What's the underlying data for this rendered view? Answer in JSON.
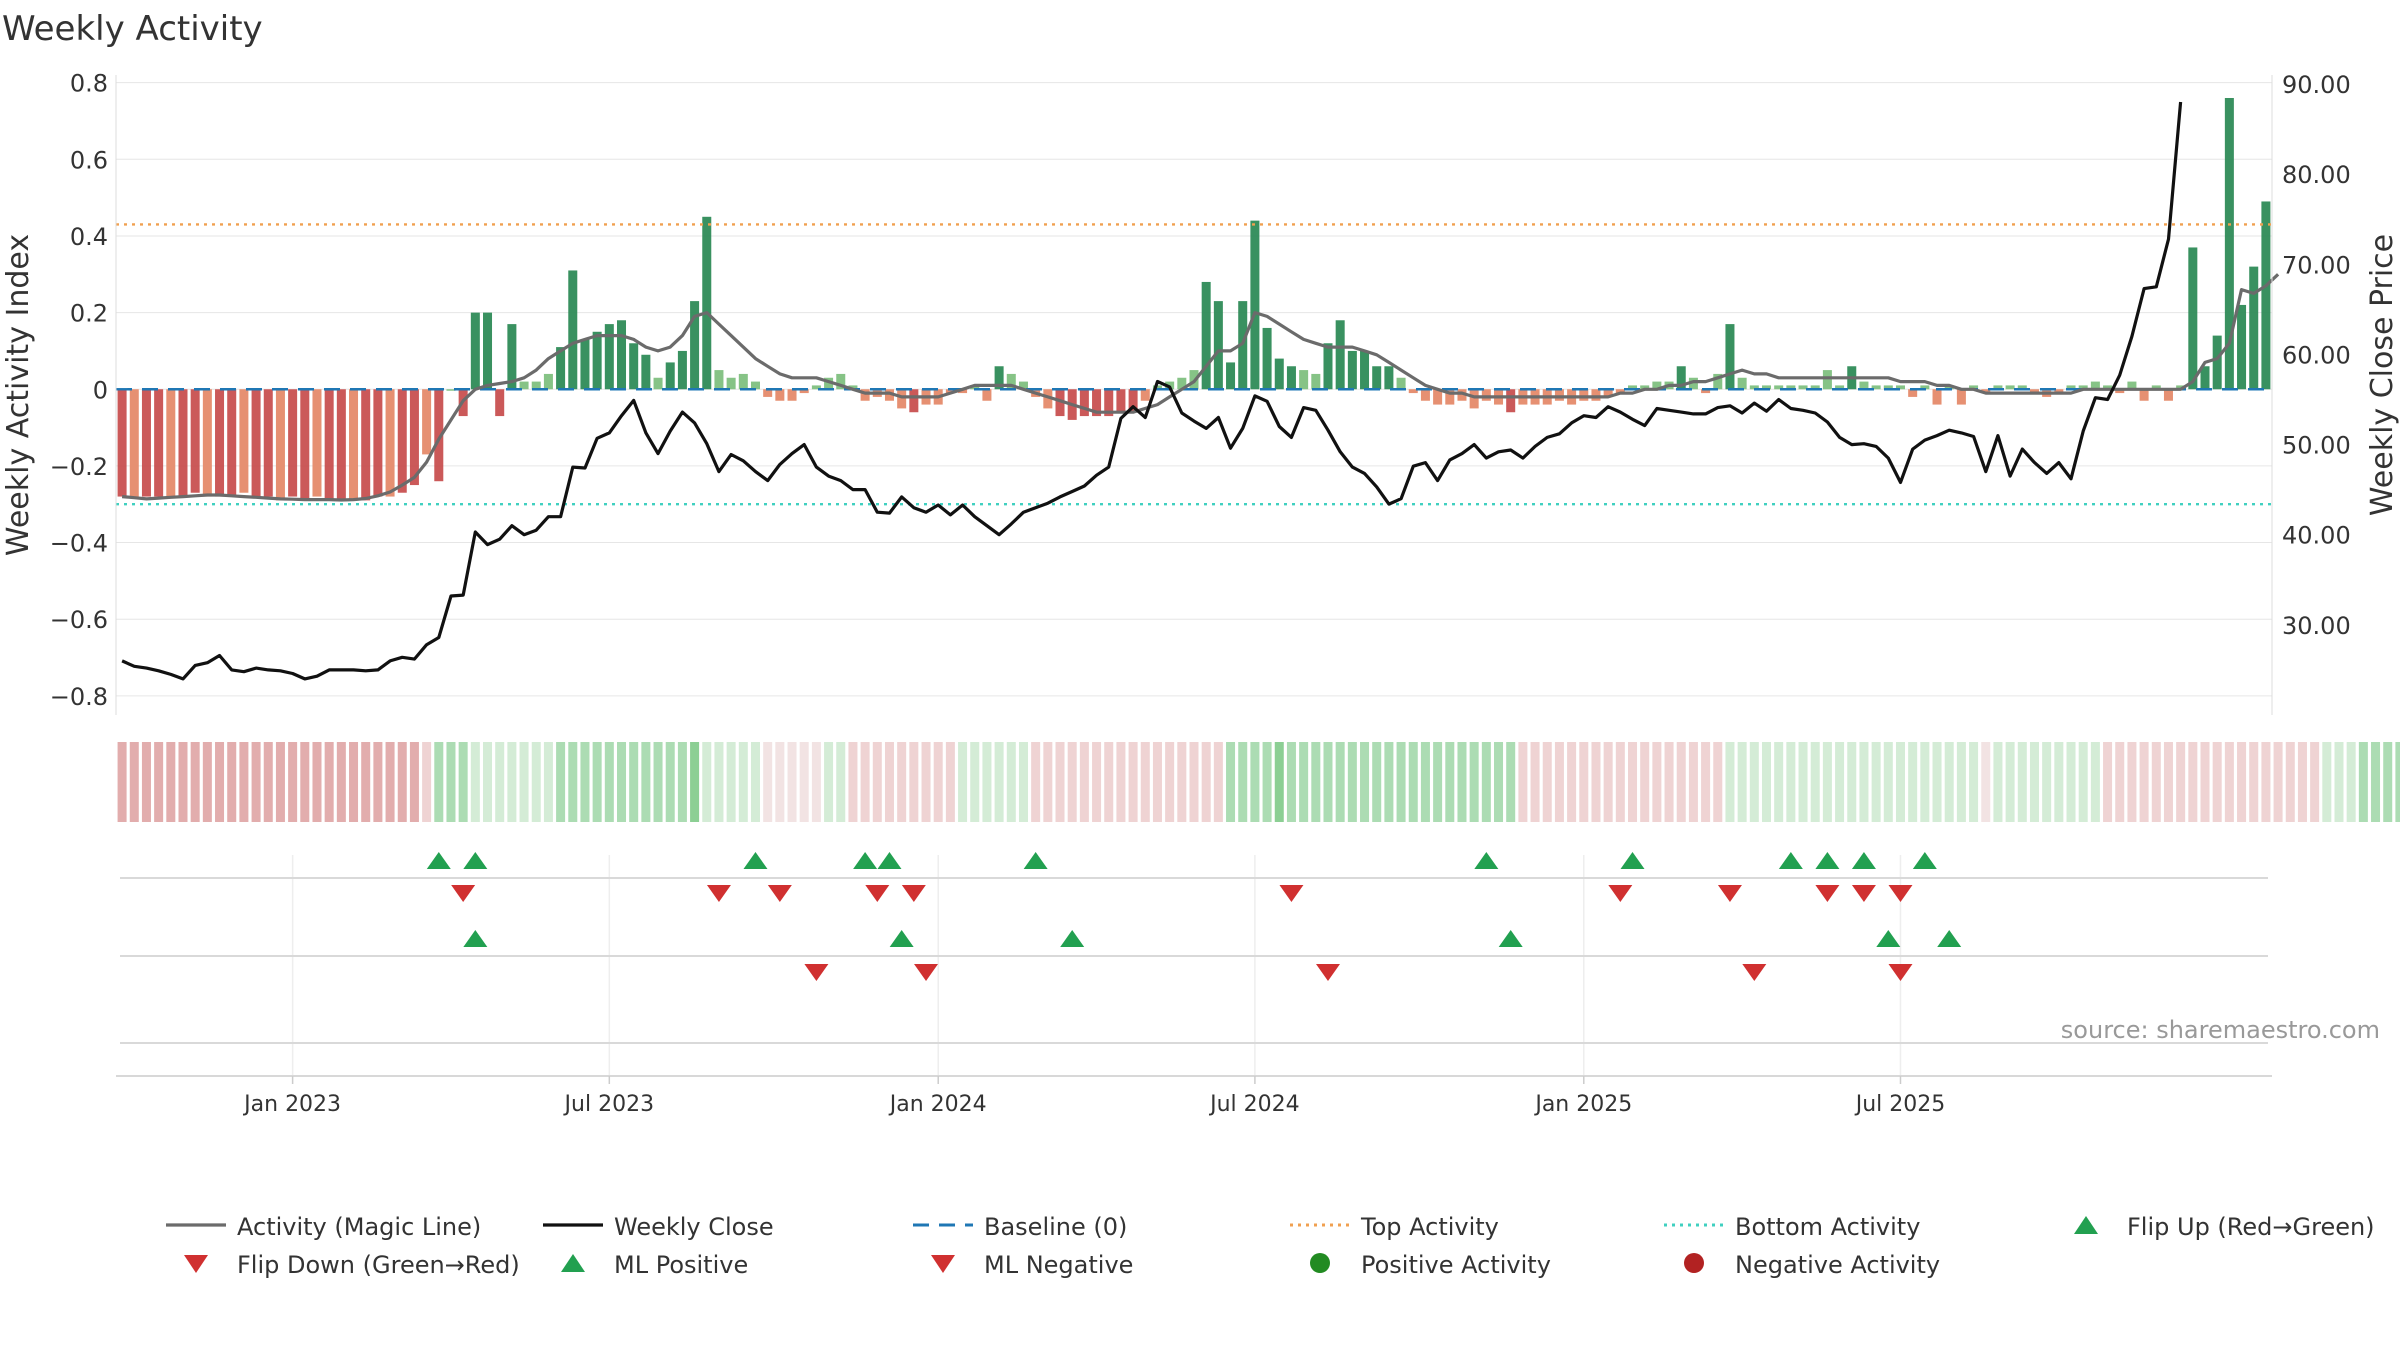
{
  "chart_data": {
    "type": "bar",
    "title": "Weekly Activity",
    "ylabel": "Weekly Activity Index",
    "y2label": "Weekly Close Price",
    "ylim": [
      -0.85,
      0.82
    ],
    "y2lim": [
      20.0,
      91.0
    ],
    "yticks": [
      "0.8",
      "0.6",
      "0.4",
      "0.2",
      "0",
      "−0.2",
      "−0.4",
      "−0.6",
      "−0.8"
    ],
    "y2ticks": [
      "90.00",
      "80.00",
      "70.00",
      "60.00",
      "50.00",
      "40.00",
      "30.00"
    ],
    "xticks": [
      "Jan 2023",
      "Jul 2023",
      "Jan 2024",
      "Jul 2024",
      "Jan 2025",
      "Jul 2025"
    ],
    "top_activity": 0.43,
    "bottom_activity": -0.3,
    "baseline": 0,
    "source": "source: sharemaestro.com",
    "colors": {
      "strong_pos": "#2e8b57",
      "light_pos": "#7fc07f",
      "strong_neg": "#c85050",
      "light_neg": "#e58a6a",
      "magic": "#6b6b6b",
      "close": "#111111",
      "baseline": "#1f77b4",
      "top": "#f0a050",
      "bottom": "#40d0c0",
      "marker_up": "#22a050",
      "marker_down": "#d03030",
      "pos_dot": "#228b22",
      "neg_dot": "#b22222"
    },
    "activity": [
      -0.28,
      -0.28,
      -0.28,
      -0.28,
      -0.28,
      -0.28,
      -0.27,
      -0.28,
      -0.28,
      -0.28,
      -0.27,
      -0.28,
      -0.28,
      -0.29,
      -0.28,
      -0.29,
      -0.28,
      -0.29,
      -0.29,
      -0.29,
      -0.29,
      -0.28,
      -0.28,
      -0.27,
      -0.25,
      -0.17,
      -0.24,
      0,
      -0.07,
      0.2,
      0.2,
      -0.07,
      0.17,
      0.02,
      0.02,
      0.04,
      0.11,
      0.31,
      0.13,
      0.15,
      0.17,
      0.18,
      0.12,
      0.09,
      0.03,
      0.07,
      0.1,
      0.23,
      0.45,
      0.05,
      0.03,
      0.04,
      0.02,
      -0.02,
      -0.03,
      -0.03,
      -0.01,
      0.01,
      0.03,
      0.04,
      0.01,
      -0.03,
      -0.02,
      -0.03,
      -0.05,
      -0.06,
      -0.04,
      -0.04,
      -0.01,
      -0.01,
      0.01,
      -0.03,
      0.06,
      0.04,
      0.02,
      -0.02,
      -0.05,
      -0.07,
      -0.08,
      -0.07,
      -0.07,
      -0.07,
      -0.06,
      -0.06,
      -0.03,
      0.01,
      0.02,
      0.03,
      0.05,
      0.28,
      0.23,
      0.07,
      0.23,
      0.44,
      0.16,
      0.08,
      0.06,
      0.05,
      0.04,
      0.12,
      0.18,
      0.1,
      0.1,
      0.06,
      0.06,
      0.03,
      -0.01,
      -0.03,
      -0.04,
      -0.04,
      -0.03,
      -0.05,
      -0.03,
      -0.04,
      -0.06,
      -0.04,
      -0.04,
      -0.04,
      -0.03,
      -0.04,
      -0.03,
      -0.03,
      -0.02,
      -0.01,
      0.01,
      0.01,
      0.02,
      0.02,
      0.06,
      0.03,
      -0.01,
      0.04,
      0.17,
      0.03,
      0.01,
      0.01,
      0.01,
      0.01,
      0.01,
      0.01,
      0.05,
      0.01,
      0.06,
      0.02,
      0.01,
      0.01,
      0.01,
      -0.02,
      0.01,
      -0.04,
      0.01,
      -0.04,
      0.01,
      -0.01,
      0.01,
      0.01,
      0.01,
      -0.01,
      -0.02,
      -0.01,
      0.01,
      0.01,
      0.02,
      0.01,
      -0.01,
      0.02,
      -0.03,
      0.01,
      -0.03,
      0.01,
      0.37,
      0.06,
      0.14,
      0.76,
      0.22,
      0.32,
      0.49
    ],
    "magic_line": [
      -0.28,
      -0.283,
      -0.286,
      -0.284,
      -0.282,
      -0.28,
      -0.278,
      -0.276,
      -0.276,
      -0.278,
      -0.28,
      -0.282,
      -0.284,
      -0.286,
      -0.287,
      -0.288,
      -0.288,
      -0.288,
      -0.289,
      -0.288,
      -0.285,
      -0.278,
      -0.268,
      -0.25,
      -0.23,
      -0.19,
      -0.13,
      -0.08,
      -0.03,
      0,
      0.01,
      0.015,
      0.02,
      0.03,
      0.05,
      0.08,
      0.1,
      0.12,
      0.13,
      0.14,
      0.14,
      0.14,
      0.13,
      0.11,
      0.1,
      0.11,
      0.14,
      0.19,
      0.2,
      0.17,
      0.14,
      0.11,
      0.08,
      0.06,
      0.04,
      0.03,
      0.03,
      0.03,
      0.02,
      0.01,
      0,
      -0.01,
      -0.01,
      -0.01,
      -0.02,
      -0.02,
      -0.02,
      -0.02,
      -0.01,
      0,
      0.01,
      0.01,
      0.01,
      0.01,
      0,
      -0.01,
      -0.02,
      -0.03,
      -0.04,
      -0.05,
      -0.06,
      -0.06,
      -0.06,
      -0.06,
      -0.05,
      -0.04,
      -0.02,
      0,
      0.02,
      0.06,
      0.1,
      0.1,
      0.12,
      0.2,
      0.19,
      0.17,
      0.15,
      0.13,
      0.12,
      0.11,
      0.11,
      0.11,
      0.1,
      0.09,
      0.07,
      0.05,
      0.03,
      0.01,
      0,
      -0.01,
      -0.01,
      -0.02,
      -0.02,
      -0.02,
      -0.02,
      -0.02,
      -0.02,
      -0.02,
      -0.02,
      -0.02,
      -0.02,
      -0.02,
      -0.02,
      -0.01,
      -0.01,
      0,
      0,
      0.01,
      0.01,
      0.02,
      0.02,
      0.03,
      0.04,
      0.05,
      0.04,
      0.04,
      0.03,
      0.03,
      0.03,
      0.03,
      0.03,
      0.03,
      0.03,
      0.03,
      0.03,
      0.03,
      0.02,
      0.02,
      0.02,
      0.01,
      0.01,
      0,
      0,
      -0.01,
      -0.01,
      -0.01,
      -0.01,
      -0.01,
      -0.01,
      -0.01,
      -0.01,
      0,
      0,
      0,
      0,
      0,
      0,
      0,
      0,
      0,
      0.02,
      0.07,
      0.08,
      0.12,
      0.26,
      0.25,
      0.27,
      0.3
    ],
    "weekly_close": [
      26.0,
      25.4,
      25.2,
      24.9,
      24.5,
      24.0,
      25.5,
      25.8,
      26.6,
      25.0,
      24.8,
      25.2,
      25.0,
      24.9,
      24.6,
      24.0,
      24.3,
      25.0,
      25.0,
      25.0,
      24.9,
      25.0,
      26.0,
      26.4,
      26.2,
      27.8,
      28.6,
      33.2,
      33.3,
      40.3,
      38.9,
      39.5,
      41.0,
      40.0,
      40.5,
      42.0,
      42.0,
      47.5,
      47.4,
      50.7,
      51.3,
      53.2,
      54.9,
      51.3,
      49.0,
      51.5,
      53.6,
      52.4,
      50.1,
      47.0,
      48.9,
      48.2,
      47.0,
      46.0,
      47.8,
      49.0,
      50.0,
      47.5,
      46.5,
      46.0,
      45.0,
      45.0,
      42.5,
      42.4,
      44.2,
      43.0,
      42.5,
      43.3,
      42.2,
      43.3,
      42.0,
      41.0,
      40.0,
      41.2,
      42.5,
      43.0,
      43.5,
      44.2,
      44.8,
      45.4,
      46.6,
      47.5,
      52.9,
      54.2,
      53.0,
      57.0,
      56.4,
      53.5,
      52.6,
      51.8,
      53.0,
      49.6,
      51.8,
      55.4,
      54.8,
      52.0,
      50.8,
      54.1,
      53.8,
      51.6,
      49.2,
      47.5,
      46.8,
      45.3,
      43.4,
      44.0,
      47.6,
      48.0,
      46.0,
      48.3,
      49.0,
      50.0,
      48.5,
      49.2,
      49.4,
      48.5,
      49.8,
      50.8,
      51.2,
      52.4,
      53.2,
      53.0,
      54.2,
      53.6,
      52.8,
      52.1,
      54.0,
      53.8,
      53.6,
      53.4,
      53.4,
      54.1,
      54.3,
      53.5,
      54.6,
      53.7,
      55.0,
      54.0,
      53.8,
      53.5,
      52.5,
      50.8,
      50.0,
      50.1,
      49.8,
      48.5,
      45.8,
      49.5,
      50.5,
      51.0,
      51.6,
      51.3,
      50.9,
      47.0,
      51.0,
      46.5,
      49.5,
      48.0,
      46.8,
      48.0,
      46.2,
      51.5,
      55.2,
      55.0,
      57.7,
      62.0,
      67.3,
      67.5,
      72.8,
      88.0
    ],
    "band_intensity": [
      2,
      2,
      2,
      2,
      2,
      2,
      2,
      2,
      2,
      2,
      2,
      2,
      2,
      2,
      2,
      2,
      2,
      2,
      2,
      2,
      2,
      2,
      2,
      2,
      2,
      1,
      -2,
      -2,
      -2,
      -1,
      -1,
      -1,
      -1,
      -1,
      -1,
      -1,
      -2,
      -2,
      -2,
      -2,
      -2,
      -2,
      -2,
      -2,
      -2,
      -2,
      -2,
      -3,
      -1,
      -1,
      -1,
      -1,
      -1,
      0,
      0,
      0,
      0,
      0,
      -1,
      -1,
      1,
      1,
      1,
      1,
      1,
      1,
      1,
      1,
      1,
      -1,
      -1,
      -1,
      -1,
      -1,
      -1,
      1,
      1,
      1,
      1,
      1,
      1,
      1,
      1,
      1,
      1,
      1,
      1,
      1,
      1,
      1,
      1,
      -2,
      -2,
      -2,
      -2,
      -3,
      -2,
      -2,
      -2,
      -2,
      -2,
      -2,
      -2,
      -2,
      -2,
      -2,
      -2,
      -2,
      -2,
      -2,
      -2,
      -2,
      -2,
      -2,
      -2,
      1,
      1,
      1,
      1,
      1,
      1,
      1,
      1,
      1,
      1,
      1,
      1,
      1,
      1,
      1,
      1,
      1,
      -1,
      -1,
      -1,
      -1,
      -1,
      -1,
      -1,
      -1,
      -1,
      -1,
      -1,
      -1,
      -1,
      -1,
      -1,
      -1,
      -1,
      -1,
      -1,
      -1,
      -1,
      0,
      -1,
      -1,
      -1,
      -1,
      -1,
      -1,
      -1,
      -1,
      -1,
      1,
      1,
      1,
      1,
      1,
      1,
      1,
      1,
      1,
      1,
      1,
      1,
      1,
      1,
      1,
      1,
      1,
      1,
      -1,
      -1,
      -1,
      -2,
      -2,
      -2,
      -2,
      -4,
      -2,
      -2,
      -2
    ],
    "flip_up": [
      26,
      29,
      52,
      61,
      63,
      75,
      112,
      124,
      137,
      140,
      143,
      148
    ],
    "flip_down": [
      28,
      49,
      54,
      62,
      65,
      96,
      123,
      132,
      140,
      143,
      146
    ],
    "ml_positive": [
      29,
      64,
      78,
      114,
      145,
      150
    ],
    "ml_negative": [
      57,
      66,
      99,
      134,
      146
    ],
    "legend": [
      {
        "label": "Activity (Magic Line)",
        "kind": "line",
        "color_key": "magic"
      },
      {
        "label": "Weekly Close",
        "kind": "line",
        "color_key": "close"
      },
      {
        "label": "Baseline (0)",
        "kind": "dash",
        "color_key": "baseline"
      },
      {
        "label": "Top Activity",
        "kind": "dot",
        "color_key": "top"
      },
      {
        "label": "Bottom Activity",
        "kind": "dot",
        "color_key": "bottom"
      },
      {
        "label": "Flip Up (Red→Green)",
        "kind": "tri-up",
        "color_key": "marker_up"
      },
      {
        "label": "Flip Down (Green→Red)",
        "kind": "tri-down",
        "color_key": "marker_down"
      },
      {
        "label": "ML Positive",
        "kind": "tri-up",
        "color_key": "marker_up"
      },
      {
        "label": "ML Negative",
        "kind": "tri-down",
        "color_key": "marker_down"
      },
      {
        "label": "Positive Activity",
        "kind": "circle",
        "color_key": "pos_dot"
      },
      {
        "label": "Negative Activity",
        "kind": "circle",
        "color_key": "neg_dot"
      }
    ]
  }
}
